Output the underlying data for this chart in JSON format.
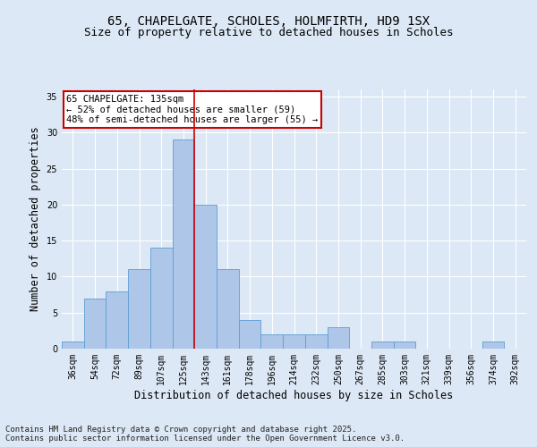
{
  "title_line1": "65, CHAPELGATE, SCHOLES, HOLMFIRTH, HD9 1SX",
  "title_line2": "Size of property relative to detached houses in Scholes",
  "xlabel": "Distribution of detached houses by size in Scholes",
  "ylabel": "Number of detached properties",
  "footer": "Contains HM Land Registry data © Crown copyright and database right 2025.\nContains public sector information licensed under the Open Government Licence v3.0.",
  "bar_labels": [
    "36sqm",
    "54sqm",
    "72sqm",
    "89sqm",
    "107sqm",
    "125sqm",
    "143sqm",
    "161sqm",
    "178sqm",
    "196sqm",
    "214sqm",
    "232sqm",
    "250sqm",
    "267sqm",
    "285sqm",
    "303sqm",
    "321sqm",
    "339sqm",
    "356sqm",
    "374sqm",
    "392sqm"
  ],
  "bar_values": [
    1,
    7,
    8,
    11,
    14,
    29,
    20,
    11,
    4,
    2,
    2,
    2,
    3,
    0,
    1,
    1,
    0,
    0,
    0,
    1,
    0
  ],
  "bar_color": "#aec6e8",
  "bar_edge_color": "#5a9fd4",
  "vline_x": 5.5,
  "annotation_text": "65 CHAPELGATE: 135sqm\n← 52% of detached houses are smaller (59)\n48% of semi-detached houses are larger (55) →",
  "annotation_box_color": "#ffffff",
  "annotation_box_edge": "#cc0000",
  "vline_color": "#cc0000",
  "ylim": [
    0,
    36
  ],
  "yticks": [
    0,
    5,
    10,
    15,
    20,
    25,
    30,
    35
  ],
  "bg_color": "#dce8f5",
  "plot_bg_color": "#dce8f5",
  "grid_color": "#ffffff",
  "title_fontsize": 10,
  "subtitle_fontsize": 9,
  "axis_label_fontsize": 8.5,
  "tick_fontsize": 7,
  "footer_fontsize": 6.5,
  "annotation_fontsize": 7.5
}
